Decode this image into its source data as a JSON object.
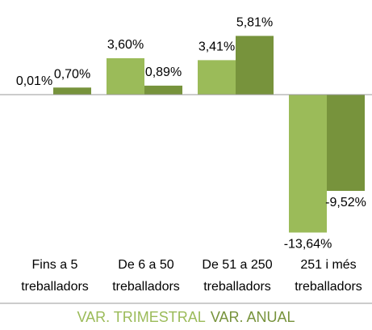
{
  "chart_data": {
    "type": "bar",
    "categories": [
      "Fins a 5\ntreballadors",
      "De 6 a 50\ntreballadors",
      "De 51 a 250\ntreballadors",
      "251 i més\ntreballadors"
    ],
    "series": [
      {
        "name": "VAR. TRIMESTRAL",
        "color": "#9bbb59",
        "values": [
          0.01,
          3.6,
          3.41,
          -13.64
        ],
        "value_labels": [
          "0,01%",
          "3,60%",
          "3,41%",
          "-13,64%"
        ]
      },
      {
        "name": "VAR. ANUAL",
        "color": "#77933c",
        "values": [
          0.7,
          0.89,
          5.81,
          -9.52
        ],
        "value_labels": [
          "0,70%",
          "0,89%",
          "5,81%",
          "-9,52%"
        ]
      }
    ],
    "ylim": [
      -14,
      6
    ],
    "legend": "bottom"
  }
}
